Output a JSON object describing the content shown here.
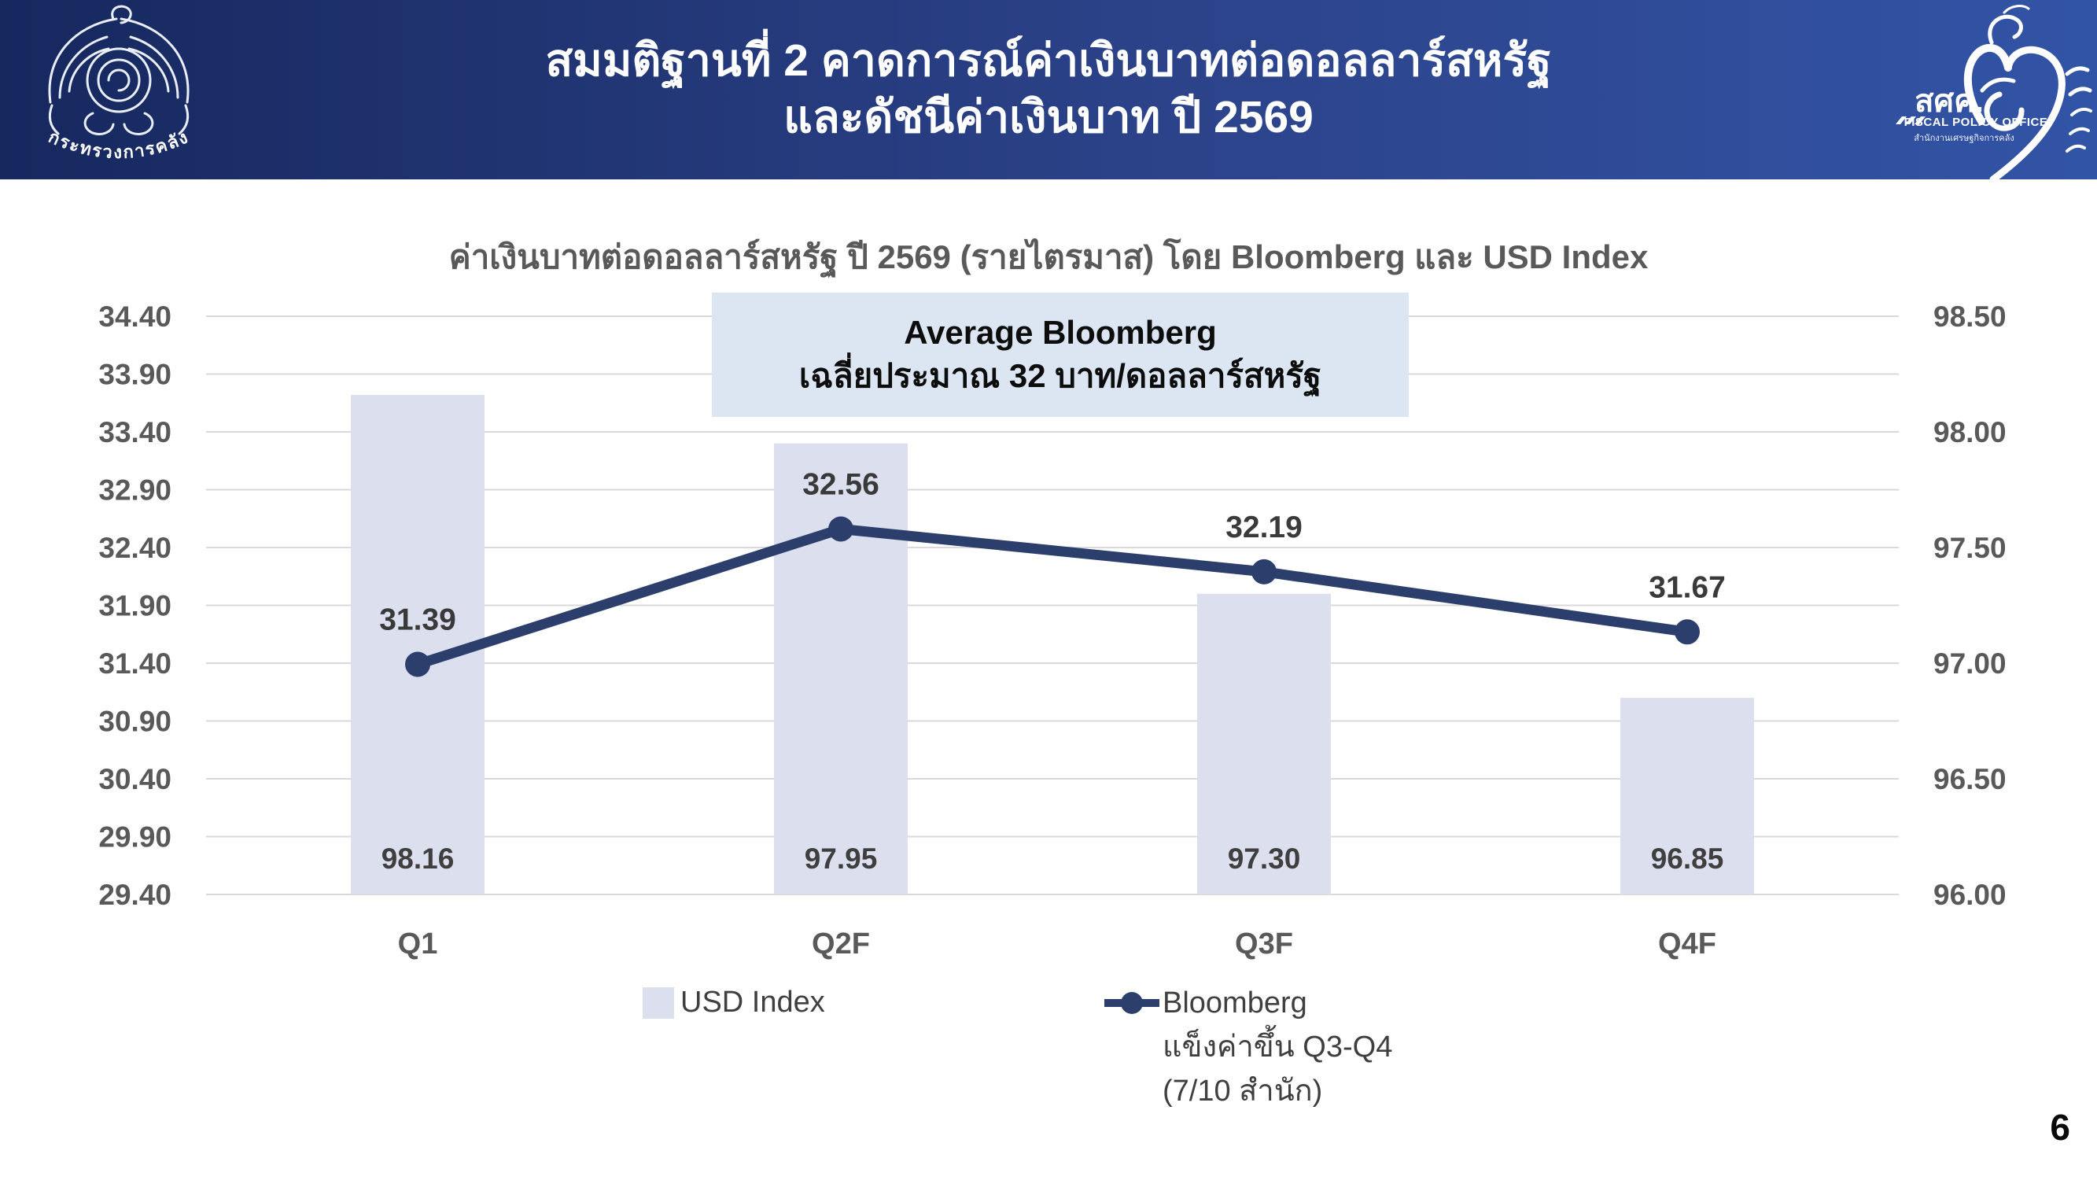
{
  "header": {
    "title_line1": "สมมติฐานที่ 2 คาดการณ์ค่าเงินบาทต่อดอลลาร์สหรัฐ",
    "title_line2": "และดัชนีค่าเงินบาท ปี 2569",
    "ministry_logo_caption": "กระทรวงการคลัง",
    "fpo_logo": {
      "abbr": "สศค.",
      "name": "FISCAL POLICY OFFICE",
      "subtitle": "สำนักงานเศรษฐกิจการคลัง"
    }
  },
  "chart_data": {
    "type": "bar+line",
    "title": "ค่าเงินบาทต่อดอลลาร์สหรัฐ ปี 2569 (รายไตรมาส) โดย Bloomberg และ USD Index",
    "categories": [
      "Q1",
      "Q2F",
      "Q3F",
      "Q4F"
    ],
    "series": [
      {
        "name": "USD Index",
        "type": "bar",
        "axis": "right",
        "values": [
          98.16,
          97.95,
          97.3,
          96.85
        ],
        "color": "#dcdfee"
      },
      {
        "name": "Bloomberg",
        "type": "line",
        "axis": "left",
        "values": [
          31.39,
          32.56,
          32.19,
          31.67
        ],
        "color": "#2c3f6c"
      }
    ],
    "left_axis": {
      "min": 29.4,
      "max": 34.4,
      "step": 0.5,
      "ticks": [
        "34.40",
        "33.90",
        "33.40",
        "32.90",
        "32.40",
        "31.90",
        "31.40",
        "30.90",
        "30.40",
        "29.90",
        "29.40"
      ]
    },
    "right_axis": {
      "min": 96.0,
      "max": 98.5,
      "step": 0.5,
      "ticks": [
        "98.50",
        "98.00",
        "97.50",
        "97.00",
        "96.50",
        "96.00"
      ]
    },
    "grid": "on",
    "legend_position": "bottom",
    "legend": [
      {
        "label": "USD Index"
      },
      {
        "label": "Bloomberg",
        "extra_lines": [
          "แข็งค่าขึ้น Q3-Q4",
          "(7/10 สำนัก)"
        ]
      }
    ],
    "annotation": {
      "line1": "Average Bloomberg",
      "line2": "เฉลี่ยประมาณ 32 บาท/ดอลลาร์สหรัฐ"
    }
  },
  "page_number": "6",
  "colors": {
    "header_gradient_left": "#16285e",
    "header_gradient_mid": "#2b4187",
    "header_gradient_right": "#3254a6",
    "bar": "#dcdfee",
    "line": "#2c3f6c",
    "grid": "#d9d9d9",
    "tick_label": "#595959",
    "data_label": "#3f3f3f",
    "annotation_bg": "#dbe6f2",
    "title": "#595959"
  }
}
